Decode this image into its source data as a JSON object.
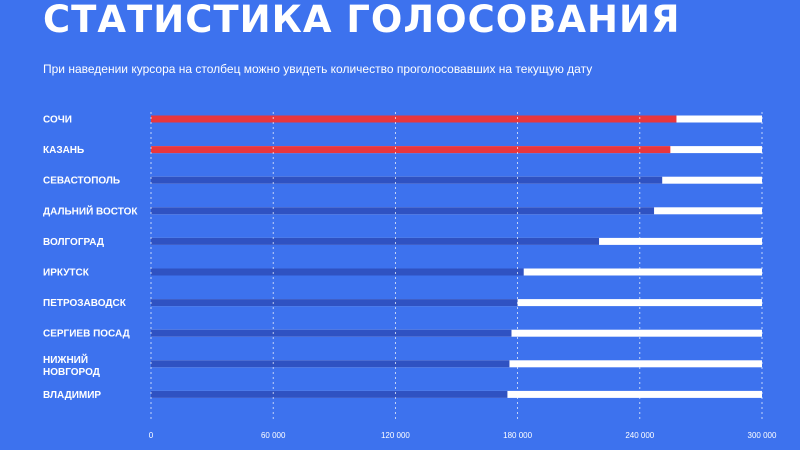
{
  "header": {
    "title": "СТАТИСТИКА ГОЛОСОВАНИЯ",
    "subtitle": "При наведении курсора на столбец можно увидеть количество проголосовавших на текущую дату"
  },
  "colors": {
    "background": "#3d72ee",
    "highlight_bar": "#e8363d",
    "regular_bar": "#2f52c2",
    "track": "#ffffff",
    "grid": "#ffffff"
  },
  "chart_data": {
    "type": "bar",
    "orientation": "horizontal",
    "title": "",
    "xlabel": "",
    "ylabel": "",
    "xlim": [
      0,
      300000
    ],
    "grid": "vertical dashed",
    "categories": [
      "СОЧИ",
      "КАЗАНЬ",
      "СЕВАСТОПОЛЬ",
      "ДАЛЬНИЙ ВОСТОК",
      "ВОЛГОГРАД",
      "ИРКУТСК",
      "ПЕТРОЗАВОДСК",
      "СЕРГИЕВ ПОСАД",
      "НИЖНИЙ НОВГОРОД",
      "ВЛАДИМИР"
    ],
    "values": [
      258000,
      255000,
      251000,
      247000,
      220000,
      183000,
      180000,
      177000,
      176000,
      175000
    ],
    "highlighted": [
      true,
      true,
      false,
      false,
      false,
      false,
      false,
      false,
      false,
      false
    ],
    "ticks": [
      0,
      60000,
      120000,
      180000,
      240000,
      300000
    ],
    "tick_labels": [
      "0",
      "60 000",
      "120 000",
      "180 000",
      "240 000",
      "300 000"
    ]
  }
}
